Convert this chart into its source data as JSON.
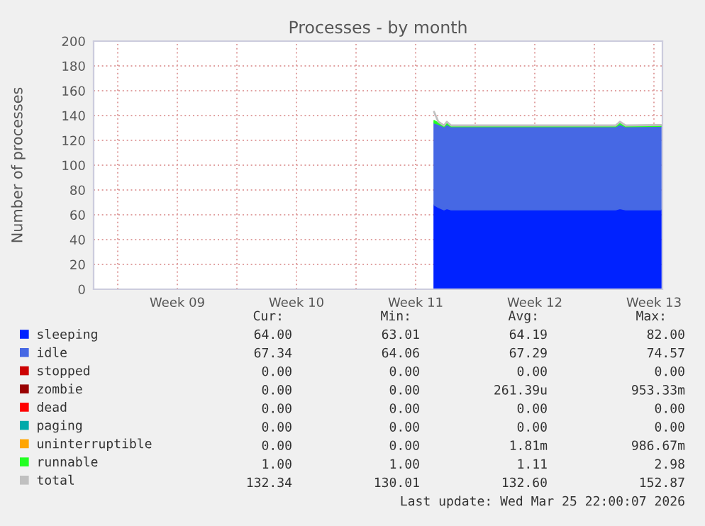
{
  "chart_data": {
    "type": "area",
    "stacked": true,
    "title": "Processes - by month",
    "ylabel": "Number of processes",
    "x": [
      "2026-03-12T14:00",
      "2026-03-12T20:00",
      "2026-03-13T04:00",
      "2026-03-13T08:00",
      "2026-03-13T14:00",
      "2026-03-17T00:00",
      "2026-03-21T00:00",
      "2026-03-23T06:00",
      "2026-03-23T12:00",
      "2026-03-23T20:00",
      "2026-03-25T22:00"
    ],
    "series": [
      {
        "name": "sleeping",
        "color": "#0022ff",
        "values": [
          68,
          66,
          64,
          65,
          64,
          64,
          64,
          64,
          65,
          64,
          64
        ]
      },
      {
        "name": "idle",
        "color": "#4668e4",
        "values": [
          66,
          67,
          67,
          68,
          67,
          67,
          67,
          67,
          68,
          67,
          67.34
        ]
      },
      {
        "name": "stopped",
        "color": "#cc0000",
        "values": [
          null,
          null,
          null,
          null,
          null,
          null,
          null,
          null,
          null,
          null,
          null
        ]
      },
      {
        "name": "zombie",
        "color": "#990000",
        "values": [
          null,
          null,
          null,
          null,
          null,
          null,
          null,
          null,
          null,
          null,
          null
        ]
      },
      {
        "name": "dead",
        "color": "#ff0000",
        "values": [
          null,
          null,
          null,
          null,
          null,
          null,
          null,
          null,
          null,
          null,
          null
        ]
      },
      {
        "name": "paging",
        "color": "#00aaaa",
        "values": [
          null,
          null,
          null,
          null,
          null,
          null,
          null,
          null,
          null,
          null,
          null
        ]
      },
      {
        "name": "uninterruptible",
        "color": "#ffa500",
        "values": [
          null,
          null,
          null,
          null,
          null,
          null,
          null,
          null,
          null,
          null,
          null
        ]
      },
      {
        "name": "runnable",
        "color": "#22ff22",
        "values": [
          2,
          1,
          1,
          1,
          1,
          1,
          1,
          1,
          1,
          1,
          1
        ]
      },
      {
        "name": "total",
        "color": "#c0c0c0",
        "type": "line",
        "values": [
          143,
          135,
          132,
          135,
          132,
          132,
          132,
          132,
          135,
          132,
          132.34
        ]
      }
    ],
    "xlim": [
      "2026-02-20T14:00",
      "2026-03-26T00:00"
    ],
    "xticks": [
      {
        "value": "2026-02-22",
        "label": null
      },
      {
        "value": "2026-02-25T12:00",
        "label": "Week 09"
      },
      {
        "value": "2026-03-01",
        "label": null
      },
      {
        "value": "2026-03-04T12:00",
        "label": "Week 10"
      },
      {
        "value": "2026-03-08",
        "label": null
      },
      {
        "value": "2026-03-11T12:00",
        "label": "Week 11"
      },
      {
        "value": "2026-03-15",
        "label": null
      },
      {
        "value": "2026-03-18T12:00",
        "label": "Week 12"
      },
      {
        "value": "2026-03-22",
        "label": null
      },
      {
        "value": "2026-03-25T12:00",
        "label": "Week 13"
      }
    ],
    "ylim": [
      0,
      200
    ],
    "yticks": [
      0,
      20,
      40,
      60,
      80,
      100,
      120,
      140,
      160,
      180,
      200
    ],
    "grid": true,
    "legend": "bottom",
    "annotations": [
      "Cur:",
      "Min:",
      "Avg:",
      "Max:",
      "64.00",
      "63.01",
      "64.19",
      "82.00",
      "67.34",
      "64.06",
      "67.29",
      "74.57",
      "0.00",
      "0.00",
      "0.00",
      "0.00",
      "0.00",
      "0.00",
      "261.39u",
      "953.33m",
      "0.00",
      "0.00",
      "0.00",
      "0.00",
      "0.00",
      "0.00",
      "0.00",
      "0.00",
      "0.00",
      "0.00",
      "1.81m",
      "986.67m",
      "1.00",
      "1.00",
      "1.11",
      "2.98",
      "132.34",
      "130.01",
      "132.60",
      "152.87",
      "Last update: Wed Mar 25 22:00:07 2026"
    ]
  }
}
